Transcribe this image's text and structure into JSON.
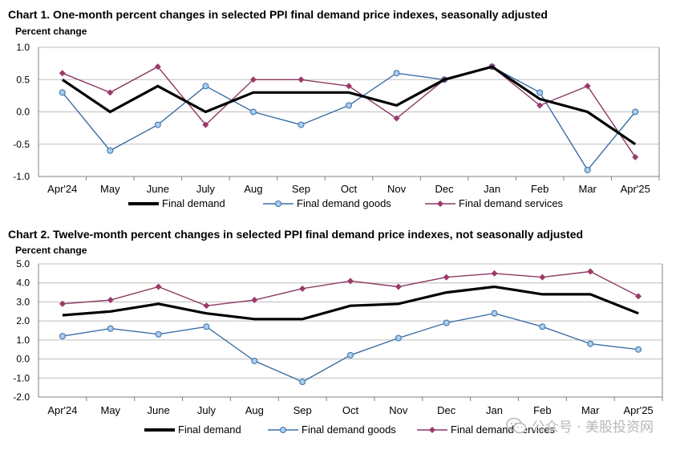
{
  "charts": [
    {
      "id": "c1",
      "title": "Chart 1. One-month percent changes in selected PPI final demand price indexes, seasonally adjusted",
      "ylabel": "Percent change",
      "legend": [
        {
          "label": "Final demand",
          "key": "final"
        },
        {
          "label": "Final demand goods",
          "key": "goods"
        },
        {
          "label": "Final demand services",
          "key": "services"
        }
      ]
    },
    {
      "id": "c2",
      "title": "Chart 2. Twelve-month percent changes in selected PPI final demand price indexes, not seasonally adjusted",
      "ylabel": "Percent change",
      "legend": [
        {
          "label": "Final demand",
          "key": "final"
        },
        {
          "label": "Final demand goods",
          "key": "goods"
        },
        {
          "label": "Final demand services",
          "key": "services"
        }
      ]
    }
  ],
  "colors": {
    "final": "#000000",
    "goods": "#3a6ea5",
    "goods_marker": "#a9cdee",
    "services": "#8b3a62",
    "services_marker": "#9b3a6a",
    "grid": "#bdbdbd",
    "axis": "#808080"
  },
  "chart_data": [
    {
      "type": "line",
      "title": "Chart 1. One-month percent changes in selected PPI final demand price indexes, seasonally adjusted",
      "ylabel": "Percent change",
      "categories": [
        "Apr'24",
        "May",
        "June",
        "July",
        "Aug",
        "Sep",
        "Oct",
        "Nov",
        "Dec",
        "Jan",
        "Feb",
        "Mar",
        "Apr'25"
      ],
      "ylim": [
        -1.0,
        1.0
      ],
      "yticks": [
        "1.0",
        "0.5",
        "0.0",
        "-0.5",
        "-1.0"
      ],
      "ytick_values": [
        1.0,
        0.5,
        0.0,
        -0.5,
        -1.0
      ],
      "grid": true,
      "legend_position": "bottom",
      "series": [
        {
          "name": "Final demand",
          "key": "final",
          "values": [
            0.5,
            0.0,
            0.4,
            0.0,
            0.3,
            0.3,
            0.3,
            0.1,
            0.5,
            0.7,
            0.2,
            0.0,
            -0.5
          ]
        },
        {
          "name": "Final demand goods",
          "key": "goods",
          "values": [
            0.3,
            -0.6,
            -0.2,
            0.4,
            0.0,
            -0.2,
            0.1,
            0.6,
            0.5,
            0.7,
            0.3,
            -0.9,
            0.0
          ]
        },
        {
          "name": "Final demand services",
          "key": "services",
          "values": [
            0.6,
            0.3,
            0.7,
            -0.2,
            0.5,
            0.5,
            0.4,
            -0.1,
            0.5,
            0.7,
            0.1,
            0.4,
            -0.7
          ]
        }
      ]
    },
    {
      "type": "line",
      "title": "Chart 2. Twelve-month percent changes in selected PPI final demand price indexes, not seasonally adjusted",
      "ylabel": "Percent change",
      "categories": [
        "Apr'24",
        "May",
        "June",
        "July",
        "Aug",
        "Sep",
        "Oct",
        "Nov",
        "Dec",
        "Jan",
        "Feb",
        "Mar",
        "Apr'25"
      ],
      "ylim": [
        -2.0,
        5.0
      ],
      "yticks": [
        "5.0",
        "4.0",
        "3.0",
        "2.0",
        "1.0",
        "0.0",
        "-1.0",
        "-2.0"
      ],
      "ytick_values": [
        5.0,
        4.0,
        3.0,
        2.0,
        1.0,
        0.0,
        -1.0,
        -2.0
      ],
      "grid": true,
      "legend_position": "bottom",
      "series": [
        {
          "name": "Final demand",
          "key": "final",
          "values": [
            2.3,
            2.5,
            2.9,
            2.4,
            2.1,
            2.1,
            2.8,
            2.9,
            3.5,
            3.8,
            3.4,
            3.4,
            2.4
          ]
        },
        {
          "name": "Final demand goods",
          "key": "goods",
          "values": [
            1.2,
            1.6,
            1.3,
            1.7,
            -0.1,
            -1.2,
            0.2,
            1.1,
            1.9,
            2.4,
            1.7,
            0.8,
            0.5
          ]
        },
        {
          "name": "Final demand services",
          "key": "services",
          "values": [
            2.9,
            3.1,
            3.8,
            2.8,
            3.1,
            3.7,
            4.1,
            3.8,
            4.3,
            4.5,
            4.3,
            4.6,
            3.3
          ]
        }
      ]
    }
  ],
  "watermark": {
    "text": "公众号 · 美股投资网",
    "icon": "wechat-icon"
  }
}
